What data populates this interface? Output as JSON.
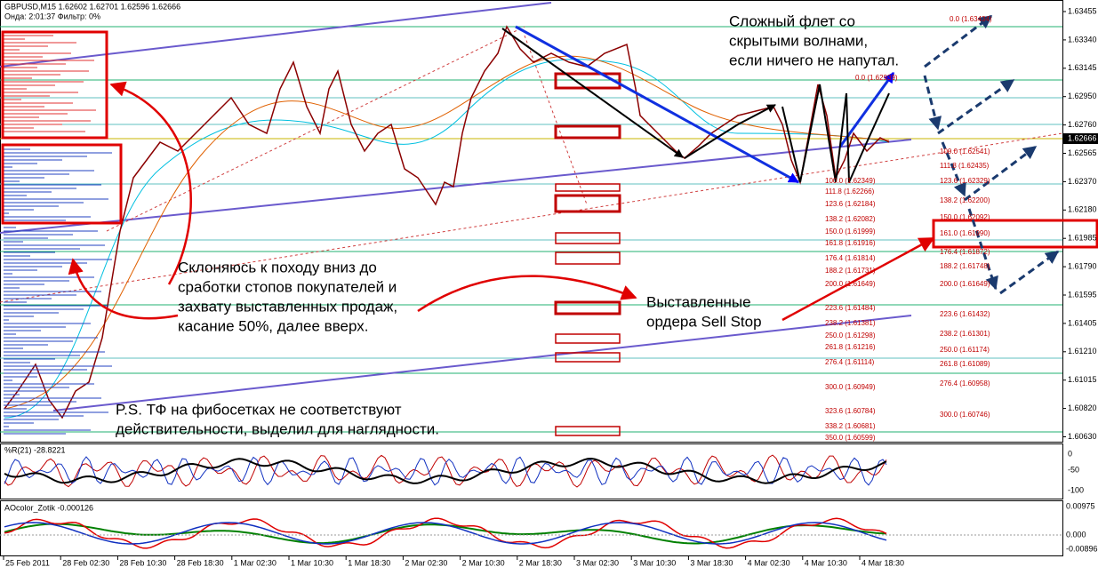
{
  "header": {
    "symbol": "GBPUSD,M15  1.62602 1.62701 1.62596 1.62666",
    "status": "Онда: 2:01:37 Фильтр: 0%"
  },
  "annotations": {
    "flat": [
      "Сложный флет со",
      "скрытыми волнами,",
      "если ничего не напутал."
    ],
    "plan": [
      "Склоняюсь к походу вниз до",
      "сработки стопов покупателей и",
      "захвату выставленных продаж,",
      "касание 50%, далее вверх."
    ],
    "orders": [
      "Выставленные",
      "ордера Sell Stop"
    ],
    "note": [
      "P.S. ТФ на фибосетках не соответствуют",
      "действительности, выделил для наглядности."
    ]
  },
  "price_axis": {
    "labels": [
      "1.63455",
      "1.63340",
      "1.63145",
      "1.62950",
      "1.62760",
      "1.62565",
      "1.62370",
      "1.62180",
      "1.61985",
      "1.61790",
      "1.61595",
      "1.61405",
      "1.61210",
      "1.61015",
      "1.60820",
      "1.60630"
    ],
    "current": "1.62666"
  },
  "indicator_1": {
    "title": "%R(21) -28.8221",
    "labels": [
      "0",
      "-50",
      "-100"
    ]
  },
  "indicator_2": {
    "title": "AOcolor_Zotik -0.000126",
    "labels": [
      "0.00975",
      "0.000",
      "-0.00896"
    ]
  },
  "time_axis": [
    "25 Feb 2011",
    "28 Feb 02:30",
    "28 Feb 10:30",
    "28 Feb 18:30",
    "1 Mar 02:30",
    "1 Mar 10:30",
    "1 Mar 18:30",
    "2 Mar 02:30",
    "2 Mar 10:30",
    "2 Mar 18:30",
    "3 Mar 02:30",
    "3 Mar 10:30",
    "3 Mar 18:30",
    "4 Mar 02:30",
    "4 Mar 10:30",
    "4 Mar 18:30"
  ],
  "fib_levels": {
    "grid_a": [
      "100.0 (1.62349)",
      "111.8 (1.62266)",
      "123.6 (1.62184)",
      "138.2 (1.62082)",
      "150.0 (1.61999)",
      "161.8 (1.61916)",
      "176.4 (1.61814)",
      "188.2 (1.61731)",
      "200.0 (1.61649)",
      "223.6 (1.61484)",
      "238.2 (1.61381)",
      "250.0 (1.61298)",
      "261.8 (1.61216)",
      "276.4 (1.61114)",
      "300.0 (1.60949)",
      "323.6 (1.60784)",
      "338.2 (1.60681)",
      "350.0 (1.60599)"
    ],
    "grid_b": [
      "100.0 (1.62541)",
      "111.8 (1.62435)",
      "123.6 (1.62329)",
      "138.2 (1.62200)",
      "150.0 (1.62092)",
      "161.0 (1.61990)",
      "176.4 (1.61872)",
      "188.2 (1.61748)",
      "200.0 (1.61649)",
      "223.6 (1.61432)",
      "238.2 (1.61301)",
      "250.0 (1.61174)",
      "261.8 (1.61089)",
      "276.4 (1.60958)",
      "300.0 (1.60746)"
    ],
    "grid_c": [
      "0.0 (1.63434)",
      "0.0 (1.62939)"
    ]
  }
}
